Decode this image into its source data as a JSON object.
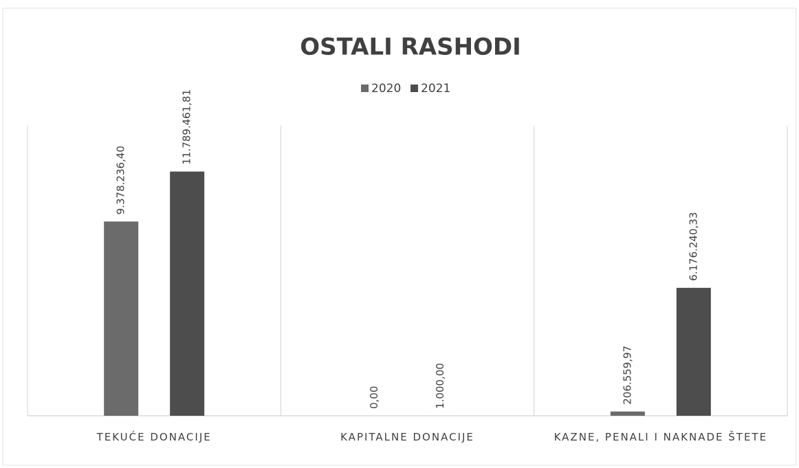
{
  "chart_data": {
    "type": "bar",
    "title": "OSTALI RASHODI",
    "categories": [
      "TEKUĆE DONACIJE",
      "KAPITALNE DONACIJE",
      "KAZNE, PENALI I NAKNADE ŠTETE"
    ],
    "series": [
      {
        "name": "2020",
        "color": "#6b6b6b",
        "values": [
          9378236.4,
          0,
          206559.97
        ],
        "value_labels": [
          "9.378.236,40",
          "0,00",
          "206.559,97"
        ]
      },
      {
        "name": "2021",
        "color": "#4d4d4d",
        "values": [
          11789461.81,
          1000,
          6176240.33
        ],
        "value_labels": [
          "11.789.461,81",
          "1.000,00",
          "6.176.240,33"
        ]
      }
    ],
    "ylim": [
      0,
      14000000
    ],
    "legend": "top"
  }
}
